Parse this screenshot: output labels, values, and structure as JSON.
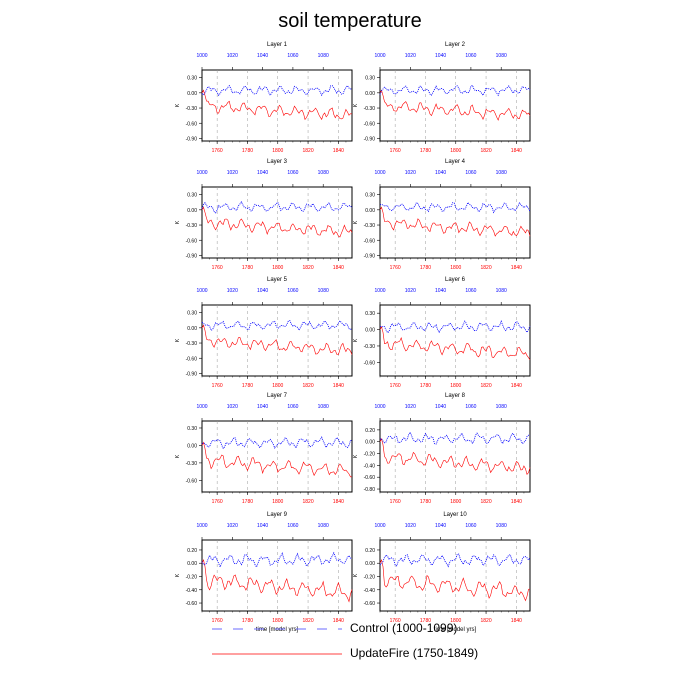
{
  "title": "soil temperature",
  "x_label": "time [model yrs]",
  "y_label": "K",
  "legend": [
    {
      "label": "Control (1000-1099)",
      "color": "#0000ff",
      "style": "dashed"
    },
    {
      "label": "UpdateFire (1750-1849)",
      "color": "#ff0000",
      "style": "solid"
    }
  ],
  "chart_data": [
    {
      "type": "line",
      "title": "Layer 1",
      "top_axis": [
        1000,
        1020,
        1040,
        1060,
        1080
      ],
      "bottom_axis": [
        1760,
        1780,
        1800,
        1820,
        1840
      ],
      "yticks": [
        "0.30",
        "0.00",
        "-0.30",
        "-0.60",
        "-0.90"
      ],
      "ylim": [
        -0.95,
        0.45
      ],
      "xlim": [
        1750,
        1849
      ]
    },
    {
      "type": "line",
      "title": "Layer 2",
      "top_axis": [
        1000,
        1020,
        1040,
        1060,
        1080
      ],
      "bottom_axis": [
        1760,
        1780,
        1800,
        1820,
        1840
      ],
      "yticks": [
        "0.30",
        "0.00",
        "-0.30",
        "-0.60",
        "-0.90"
      ],
      "ylim": [
        -0.95,
        0.45
      ],
      "xlim": [
        1750,
        1849
      ]
    },
    {
      "type": "line",
      "title": "Layer 3",
      "top_axis": [
        1000,
        1020,
        1040,
        1060,
        1080
      ],
      "bottom_axis": [
        1760,
        1780,
        1800,
        1820,
        1840
      ],
      "yticks": [
        "0.30",
        "0.00",
        "-0.30",
        "-0.60",
        "-0.90"
      ],
      "ylim": [
        -0.95,
        0.45
      ],
      "xlim": [
        1750,
        1849
      ]
    },
    {
      "type": "line",
      "title": "Layer 4",
      "top_axis": [
        1000,
        1020,
        1040,
        1060,
        1080
      ],
      "bottom_axis": [
        1760,
        1780,
        1800,
        1820,
        1840
      ],
      "yticks": [
        "0.30",
        "0.00",
        "-0.30",
        "-0.60",
        "-0.90"
      ],
      "ylim": [
        -0.95,
        0.45
      ],
      "xlim": [
        1750,
        1849
      ]
    },
    {
      "type": "line",
      "title": "Layer 5",
      "top_axis": [
        1000,
        1020,
        1040,
        1060,
        1080
      ],
      "bottom_axis": [
        1760,
        1780,
        1800,
        1820,
        1840
      ],
      "yticks": [
        "0.30",
        "0.00",
        "-0.30",
        "-0.60",
        "-0.90"
      ],
      "ylim": [
        -0.95,
        0.45
      ],
      "xlim": [
        1750,
        1849
      ]
    },
    {
      "type": "line",
      "title": "Layer 6",
      "top_axis": [
        1000,
        1020,
        1040,
        1060,
        1080
      ],
      "bottom_axis": [
        1760,
        1780,
        1800,
        1820,
        1840
      ],
      "yticks": [
        "0.30",
        "0.00",
        "-0.30",
        "-0.60"
      ],
      "ylim": [
        -0.85,
        0.45
      ],
      "xlim": [
        1750,
        1849
      ]
    },
    {
      "type": "line",
      "title": "Layer 7",
      "top_axis": [
        1000,
        1020,
        1040,
        1060,
        1080
      ],
      "bottom_axis": [
        1760,
        1780,
        1800,
        1820,
        1840
      ],
      "yticks": [
        "0.30",
        "0.00",
        "-0.30",
        "-0.60"
      ],
      "ylim": [
        -0.8,
        0.42
      ],
      "xlim": [
        1750,
        1849
      ]
    },
    {
      "type": "line",
      "title": "Layer 8",
      "top_axis": [
        1000,
        1020,
        1040,
        1060,
        1080
      ],
      "bottom_axis": [
        1760,
        1780,
        1800,
        1820,
        1840
      ],
      "yticks": [
        "0.20",
        "0.00",
        "-0.20",
        "-0.40",
        "-0.60",
        "-0.80"
      ],
      "ylim": [
        -0.85,
        0.35
      ],
      "xlim": [
        1750,
        1849
      ]
    },
    {
      "type": "line",
      "title": "Layer 9",
      "top_axis": [
        1000,
        1020,
        1040,
        1060,
        1080
      ],
      "bottom_axis": [
        1760,
        1780,
        1800,
        1820,
        1840
      ],
      "yticks": [
        "0.20",
        "0.00",
        "-0.20",
        "-0.40",
        "-0.60"
      ],
      "ylim": [
        -0.72,
        0.35
      ],
      "xlim": [
        1750,
        1849
      ]
    },
    {
      "type": "line",
      "title": "Layer 10",
      "top_axis": [
        1000,
        1020,
        1040,
        1060,
        1080
      ],
      "bottom_axis": [
        1760,
        1780,
        1800,
        1820,
        1840
      ],
      "yticks": [
        "0.20",
        "0.00",
        "-0.20",
        "-0.40",
        "-0.60"
      ],
      "ylim": [
        -0.72,
        0.35
      ],
      "xlim": [
        1750,
        1849
      ]
    }
  ]
}
